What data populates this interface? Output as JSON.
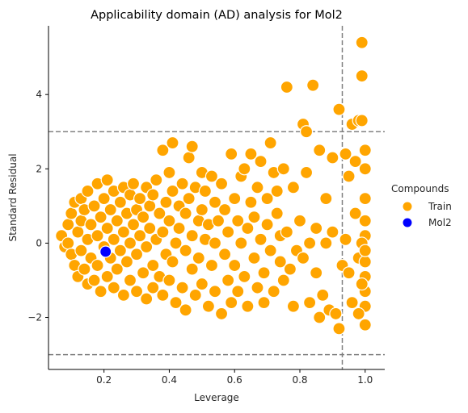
{
  "chart_data": {
    "type": "scatter",
    "title": "Applicability domain (AD) analysis for Mol2",
    "xlabel": "Leverage",
    "ylabel": "Standard Residual",
    "xlim": [
      0.03,
      1.06
    ],
    "ylim": [
      -3.4,
      5.85
    ],
    "xticks": [
      0.2,
      0.4,
      0.6,
      0.8,
      1.0
    ],
    "xtick_labels": [
      "0.2",
      "0.4",
      "0.6",
      "0.8",
      "1.0"
    ],
    "yticks": [
      -2,
      0,
      2,
      4
    ],
    "ytick_labels": [
      "−2",
      "0",
      "2",
      "4"
    ],
    "reference_lines": {
      "leverage_threshold": 0.93,
      "residual_upper": 3,
      "residual_lower": -3
    },
    "legend": {
      "title": "Compounds",
      "placement": "right",
      "entries": [
        "Train",
        "Mol2"
      ]
    },
    "colors": {
      "Train": "#FFA500",
      "Mol2": "#0000FF",
      "reference_line": "#808080"
    },
    "grid": false,
    "series": [
      {
        "name": "Train",
        "points": [
          [
            0.07,
            0.2
          ],
          [
            0.08,
            -0.1
          ],
          [
            0.09,
            0.5
          ],
          [
            0.09,
            0.0
          ],
          [
            0.1,
            0.8
          ],
          [
            0.1,
            -0.3
          ],
          [
            0.11,
            1.1
          ],
          [
            0.11,
            -0.6
          ],
          [
            0.12,
            0.3
          ],
          [
            0.12,
            -0.9
          ],
          [
            0.13,
            1.2
          ],
          [
            0.13,
            0.6
          ],
          [
            0.13,
            -0.2
          ],
          [
            0.14,
            0.9
          ],
          [
            0.14,
            -0.7
          ],
          [
            0.15,
            0.1
          ],
          [
            0.15,
            1.4
          ],
          [
            0.15,
            -1.1
          ],
          [
            0.16,
            0.5
          ],
          [
            0.16,
            -0.4
          ],
          [
            0.17,
            1.0
          ],
          [
            0.17,
            -1.0
          ],
          [
            0.18,
            0.2
          ],
          [
            0.18,
            1.6
          ],
          [
            0.18,
            -0.6
          ],
          [
            0.19,
            0.7
          ],
          [
            0.19,
            -1.3
          ],
          [
            0.2,
            1.2
          ],
          [
            0.2,
            -0.1
          ],
          [
            0.21,
            0.4
          ],
          [
            0.21,
            1.7
          ],
          [
            0.21,
            -0.9
          ],
          [
            0.22,
            0.9
          ],
          [
            0.22,
            -0.4
          ],
          [
            0.23,
            1.4
          ],
          [
            0.23,
            0.1
          ],
          [
            0.23,
            -1.2
          ],
          [
            0.24,
            0.6
          ],
          [
            0.24,
            -0.7
          ],
          [
            0.25,
            1.1
          ],
          [
            0.25,
            -0.2
          ],
          [
            0.26,
            1.5
          ],
          [
            0.26,
            0.3
          ],
          [
            0.26,
            -1.4
          ],
          [
            0.27,
            0.8
          ],
          [
            0.27,
            -0.5
          ],
          [
            0.28,
            1.3
          ],
          [
            0.28,
            0.0
          ],
          [
            0.28,
            -1.0
          ],
          [
            0.29,
            0.5
          ],
          [
            0.29,
            1.6
          ],
          [
            0.3,
            -0.3
          ],
          [
            0.3,
            0.9
          ],
          [
            0.3,
            -1.3
          ],
          [
            0.31,
            1.2
          ],
          [
            0.31,
            0.2
          ],
          [
            0.32,
            -0.8
          ],
          [
            0.32,
            0.7
          ],
          [
            0.33,
            1.5
          ],
          [
            0.33,
            -0.1
          ],
          [
            0.33,
            -1.5
          ],
          [
            0.34,
            0.4
          ],
          [
            0.34,
            1.0
          ],
          [
            0.35,
            -0.6
          ],
          [
            0.35,
            1.3
          ],
          [
            0.35,
            -1.2
          ],
          [
            0.36,
            0.1
          ],
          [
            0.36,
            1.7
          ],
          [
            0.37,
            0.8
          ],
          [
            0.37,
            -0.9
          ],
          [
            0.38,
            2.5
          ],
          [
            0.38,
            0.3
          ],
          [
            0.38,
            -1.4
          ],
          [
            0.39,
            1.1
          ],
          [
            0.39,
            -0.3
          ],
          [
            0.4,
            1.9
          ],
          [
            0.4,
            0.6
          ],
          [
            0.4,
            -1.0
          ],
          [
            0.41,
            2.7
          ],
          [
            0.41,
            1.4
          ],
          [
            0.41,
            -0.5
          ],
          [
            0.42,
            0.0
          ],
          [
            0.42,
            -1.6
          ],
          [
            0.43,
            1.0
          ],
          [
            0.43,
            0.4
          ],
          [
            0.44,
            -1.2
          ],
          [
            0.44,
            1.6
          ],
          [
            0.45,
            -0.2
          ],
          [
            0.45,
            0.8
          ],
          [
            0.45,
            -1.8
          ],
          [
            0.46,
            2.3
          ],
          [
            0.46,
            1.2
          ],
          [
            0.47,
            -0.7
          ],
          [
            0.47,
            0.2
          ],
          [
            0.47,
            2.6
          ],
          [
            0.48,
            1.5
          ],
          [
            0.48,
            -1.4
          ],
          [
            0.49,
            0.6
          ],
          [
            0.49,
            -0.4
          ],
          [
            0.5,
            1.9
          ],
          [
            0.5,
            0.9
          ],
          [
            0.5,
            -1.1
          ],
          [
            0.51,
            0.1
          ],
          [
            0.51,
            1.4
          ],
          [
            0.52,
            -1.7
          ],
          [
            0.52,
            0.5
          ],
          [
            0.53,
            1.8
          ],
          [
            0.53,
            -0.6
          ],
          [
            0.54,
            0.0
          ],
          [
            0.54,
            1.1
          ],
          [
            0.54,
            -1.3
          ],
          [
            0.55,
            0.6
          ],
          [
            0.56,
            -1.9
          ],
          [
            0.56,
            1.6
          ],
          [
            0.57,
            -0.3
          ],
          [
            0.57,
            0.9
          ],
          [
            0.58,
            -1.0
          ],
          [
            0.58,
            0.3
          ],
          [
            0.59,
            2.4
          ],
          [
            0.59,
            -1.6
          ],
          [
            0.6,
            1.2
          ],
          [
            0.6,
            -0.6
          ],
          [
            0.61,
            0.6
          ],
          [
            0.61,
            -1.3
          ],
          [
            0.62,
            1.8
          ],
          [
            0.62,
            0.0
          ],
          [
            0.63,
            -0.9
          ],
          [
            0.63,
            2.0
          ],
          [
            0.64,
            0.4
          ],
          [
            0.64,
            -1.7
          ],
          [
            0.65,
            1.1
          ],
          [
            0.65,
            2.4
          ],
          [
            0.66,
            -0.4
          ],
          [
            0.66,
            0.7
          ],
          [
            0.67,
            -1.2
          ],
          [
            0.67,
            1.5
          ],
          [
            0.68,
            0.1
          ],
          [
            0.68,
            2.2
          ],
          [
            0.69,
            -0.8
          ],
          [
            0.69,
            -1.6
          ],
          [
            0.7,
            0.5
          ],
          [
            0.7,
            1.2
          ],
          [
            0.71,
            2.7
          ],
          [
            0.71,
            -0.2
          ],
          [
            0.72,
            1.9
          ],
          [
            0.72,
            -1.3
          ],
          [
            0.73,
            0.8
          ],
          [
            0.73,
            1.4
          ],
          [
            0.74,
            -0.5
          ],
          [
            0.74,
            0.2
          ],
          [
            0.75,
            -1.0
          ],
          [
            0.75,
            2.0
          ],
          [
            0.76,
            4.2
          ],
          [
            0.76,
            0.3
          ],
          [
            0.77,
            -0.7
          ],
          [
            0.78,
            1.5
          ],
          [
            0.78,
            -1.7
          ],
          [
            0.79,
            -0.2
          ],
          [
            0.8,
            0.6
          ],
          [
            0.81,
            3.2
          ],
          [
            0.81,
            -0.4
          ],
          [
            0.82,
            3.0
          ],
          [
            0.82,
            1.9
          ],
          [
            0.83,
            -1.6
          ],
          [
            0.83,
            0.0
          ],
          [
            0.84,
            4.25
          ],
          [
            0.85,
            0.4
          ],
          [
            0.85,
            -0.8
          ],
          [
            0.86,
            2.5
          ],
          [
            0.86,
            -2.0
          ],
          [
            0.87,
            -1.4
          ],
          [
            0.88,
            0.0
          ],
          [
            0.88,
            1.2
          ],
          [
            0.89,
            -1.8
          ],
          [
            0.9,
            0.3
          ],
          [
            0.9,
            2.3
          ],
          [
            0.91,
            -1.9
          ],
          [
            0.92,
            3.6
          ],
          [
            0.92,
            -2.3
          ],
          [
            0.93,
            -0.6
          ],
          [
            0.94,
            0.1
          ],
          [
            0.94,
            2.4
          ],
          [
            0.95,
            -0.8
          ],
          [
            0.95,
            1.8
          ],
          [
            0.96,
            3.2
          ],
          [
            0.96,
            -1.6
          ],
          [
            0.97,
            2.2
          ],
          [
            0.97,
            0.8
          ],
          [
            0.98,
            3.3
          ],
          [
            0.98,
            -0.4
          ],
          [
            0.99,
            4.5
          ],
          [
            0.99,
            5.4
          ],
          [
            1.0,
            2.5
          ],
          [
            1.0,
            1.2
          ],
          [
            1.0,
            0.2
          ],
          [
            1.0,
            -0.5
          ],
          [
            1.0,
            -1.3
          ],
          [
            1.0,
            -2.2
          ],
          [
            1.0,
            -1.7
          ],
          [
            1.0,
            2.0
          ],
          [
            1.0,
            -0.9
          ],
          [
            1.0,
            0.6
          ],
          [
            0.99,
            -1.1
          ],
          [
            0.99,
            0.0
          ],
          [
            1.0,
            -0.2
          ],
          [
            0.99,
            3.3
          ],
          [
            0.98,
            -1.9
          ]
        ]
      },
      {
        "name": "Mol2",
        "points": [
          [
            0.205,
            -0.23
          ]
        ]
      }
    ]
  }
}
